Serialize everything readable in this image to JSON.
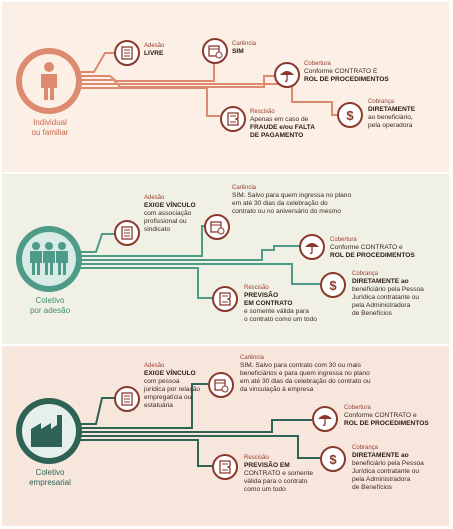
{
  "sections": [
    {
      "category": [
        "Individual",
        "ou familiar"
      ],
      "items": {
        "adesao": {
          "heading": "Adesão",
          "lines": [
            {
              "t": "LIVRE",
              "b": true
            }
          ]
        },
        "carencia": {
          "heading": "Carência",
          "lines": [
            {
              "t": "SIM",
              "b": true
            }
          ]
        },
        "cobertura": {
          "heading": "Cobertura",
          "lines": [
            {
              "t": "Conforme CONTRATO E",
              "b": false
            },
            {
              "t": "ROL DE PROCEDIMENTOS",
              "b": true
            }
          ]
        },
        "cobranca": {
          "heading": "Cobrança",
          "lines": [
            {
              "t": "DIRETAMENTE",
              "b": true
            },
            {
              "t": "ao beneficiário,",
              "b": false
            },
            {
              "t": "pela operadora",
              "b": false
            }
          ]
        },
        "rescisao": {
          "heading": "Rescisão",
          "lines": [
            {
              "t": "Apenas em caso de",
              "b": false
            },
            {
              "t": "FRAUDE e/ou FALTA",
              "b": true
            },
            {
              "t": "DE PAGAMENTO",
              "b": true
            }
          ]
        }
      }
    },
    {
      "category": [
        "Coletivo",
        "por adesão"
      ],
      "items": {
        "adesao": {
          "heading": "Adesão",
          "lines": [
            {
              "t": "EXIGE VÍNCULO",
              "b": true
            },
            {
              "t": "com associação",
              "b": false
            },
            {
              "t": "profissional ou",
              "b": false
            },
            {
              "t": "sindicato",
              "b": false
            }
          ]
        },
        "carencia": {
          "heading": "Carência",
          "lines": [
            {
              "t": "SIM. Salvo para quem ingressa no plano",
              "b": false
            },
            {
              "t": "em até 30 dias da celebração do",
              "b": false
            },
            {
              "t": "contrato ou no aniversário do mesmo",
              "b": false
            }
          ]
        },
        "cobertura": {
          "heading": "Cobertura",
          "lines": [
            {
              "t": "Conforme CONTRATO e",
              "b": false
            },
            {
              "t": "ROL DE PROCEDIMENTOS",
              "b": true
            }
          ]
        },
        "cobranca": {
          "heading": "Cobrança",
          "lines": [
            {
              "t": "DIRETAMENTE ao",
              "b": true
            },
            {
              "t": "beneficiário pela Pessoa",
              "b": false
            },
            {
              "t": "Jurídica contratante ou",
              "b": false
            },
            {
              "t": "pela Administradora",
              "b": false
            },
            {
              "t": "de Benefícios",
              "b": false
            }
          ]
        },
        "rescisao": {
          "heading": "Rescisão",
          "lines": [
            {
              "t": "PREVISÃO",
              "b": true
            },
            {
              "t": "EM CONTRATO",
              "b": true
            },
            {
              "t": "e somente válida para",
              "b": false
            },
            {
              "t": "o contrato como um todo",
              "b": false
            }
          ]
        }
      }
    },
    {
      "category": [
        "Coletivo",
        "empresarial"
      ],
      "items": {
        "adesao": {
          "heading": "Adesão",
          "lines": [
            {
              "t": "EXIGE VÍNCULO",
              "b": true
            },
            {
              "t": "com pessoa",
              "b": false
            },
            {
              "t": "jurídica por relação",
              "b": false
            },
            {
              "t": "empregatícia ou",
              "b": false
            },
            {
              "t": "estatuária",
              "b": false
            }
          ]
        },
        "carencia": {
          "heading": "Carência",
          "lines": [
            {
              "t": "SIM. Salvo para contrato com 30 ou mais",
              "b": false
            },
            {
              "t": "beneficiários e para quem ingressa no plano",
              "b": false
            },
            {
              "t": "em até 30 dias da celebração do contrato ou",
              "b": false
            },
            {
              "t": "da vinculação à empresa",
              "b": false
            }
          ]
        },
        "cobertura": {
          "heading": "Cobertura",
          "lines": [
            {
              "t": "Conforme CONTRATO e",
              "b": false
            },
            {
              "t": "ROL DE PROCEDIMENTOS",
              "b": true
            }
          ]
        },
        "cobranca": {
          "heading": "Cobrança",
          "lines": [
            {
              "t": "DIRETAMENTE ao",
              "b": true
            },
            {
              "t": "beneficiário pela Pessoa",
              "b": false
            },
            {
              "t": "Jurídica contratante ou",
              "b": false
            },
            {
              "t": "pela Administradora",
              "b": false
            },
            {
              "t": "de Benefícios",
              "b": false
            }
          ]
        },
        "rescisao": {
          "heading": "Rescisão",
          "lines": [
            {
              "t": "PREVISÃO EM",
              "b": true
            },
            {
              "t": "CONTRATO e somente",
              "b": false
            },
            {
              "t": "válida para o contrato",
              "b": false
            },
            {
              "t": "como um todo",
              "b": false
            }
          ]
        }
      }
    }
  ],
  "colors": {
    "s1_bg": "#fbefe6",
    "s1_accent": "#dc8a70",
    "s2_bg": "#f1f0e4",
    "s2_accent": "#4d9b88",
    "s3_bg": "#f7e6dc",
    "s3_accent": "#2e6254",
    "icon_border": "#8a3a2c"
  },
  "icons": {
    "adesao": "document-icon",
    "carencia": "calendar-clock-icon",
    "cobertura": "umbrella-icon",
    "cobranca": "dollar-icon",
    "rescisao": "torn-document-icon",
    "hubs": [
      "person-icon",
      "group-icon",
      "factory-icon"
    ]
  }
}
